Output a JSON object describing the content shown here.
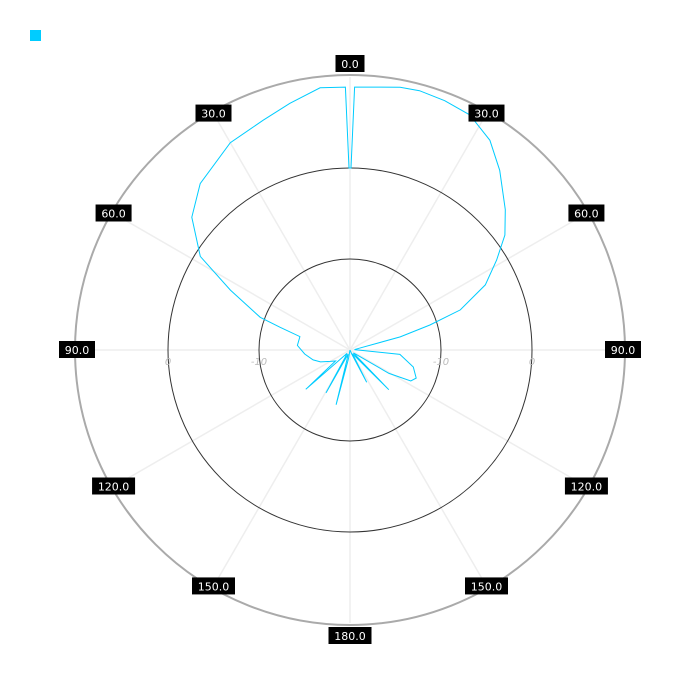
{
  "chart_data": {
    "type": "polar-line",
    "title": "",
    "angle_unit": "degrees",
    "angle_zero": "top",
    "direction": "clockwise",
    "angle_tick_labels": [
      "0.0",
      "30.0",
      "60.0",
      "90.0",
      "120.0",
      "150.0",
      "180.0",
      "150.0",
      "120.0",
      "90.0",
      "60.0",
      "30.0"
    ],
    "angle_ticks": [
      0,
      30,
      60,
      90,
      120,
      150,
      180,
      -150,
      -120,
      -90,
      -60,
      -30
    ],
    "radial_range": [
      -20,
      10
    ],
    "radial_rings": [
      -10,
      0,
      10
    ],
    "radial_tick_labels": [
      "-10",
      "0"
    ],
    "grid": true,
    "legend": {
      "placement": "top-left",
      "entries": [
        {
          "color": "#00ccff"
        }
      ]
    },
    "series": [
      {
        "color": "#00ccff",
        "points": [
          [
            -180,
            -20
          ],
          [
            -170,
            -19
          ],
          [
            -165.7,
            -13.8
          ],
          [
            -162,
            -19
          ],
          [
            -155,
            -19.5
          ],
          [
            -150.8,
            -14.6
          ],
          [
            -147,
            -19
          ],
          [
            -138,
            -19.5
          ],
          [
            -131.6,
            -13.5
          ],
          [
            -127,
            -18
          ],
          [
            -120,
            -17.5
          ],
          [
            -112,
            -16.5
          ],
          [
            -105,
            -15.8
          ],
          [
            -95,
            -15
          ],
          [
            -85,
            -14.2
          ],
          [
            -75,
            -14.3
          ],
          [
            -72,
            -11.9
          ],
          [
            -70,
            -9.5
          ],
          [
            -63.4,
            -5.3
          ],
          [
            -58,
            -0.6
          ],
          [
            -50,
            2.7
          ],
          [
            -42,
            4.6
          ],
          [
            -30,
            6.3
          ],
          [
            -20.7,
            7.0
          ],
          [
            -13.7,
            7.9
          ],
          [
            -6.5,
            9.0
          ],
          [
            -1,
            8.9
          ],
          [
            -0.3,
            0
          ],
          [
            0.3,
            0
          ],
          [
            1,
            8.9
          ],
          [
            10.8,
            9.4
          ],
          [
            15,
            9.5
          ],
          [
            20.8,
            9.3
          ],
          [
            27,
            9.0
          ],
          [
            33.7,
            7.7
          ],
          [
            39.8,
            5.7
          ],
          [
            47.9,
            3.0
          ],
          [
            53.4,
            1.2
          ],
          [
            58.5,
            -1.1
          ],
          [
            64.3,
            -3.5
          ],
          [
            70,
            -7.1
          ],
          [
            72.6,
            -10.8
          ],
          [
            75.4,
            -14.3
          ],
          [
            79,
            -19
          ],
          [
            85,
            -19.5
          ],
          [
            95,
            -14.5
          ],
          [
            105,
            -12.8
          ],
          [
            113,
            -12.1
          ],
          [
            117,
            -12.5
          ],
          [
            121,
            -15
          ],
          [
            125,
            -19
          ],
          [
            131,
            -19.5
          ],
          [
            135.7,
            -13.9
          ],
          [
            140,
            -19
          ],
          [
            147,
            -19.5
          ],
          [
            152.7,
            -16
          ],
          [
            157,
            -19.5
          ],
          [
            170,
            -20
          ],
          [
            180,
            -20
          ]
        ]
      }
    ]
  },
  "colors": {
    "outer_ring": "#aaaaaa",
    "inner_rings": "#333333",
    "spokes": "#eeeeee",
    "label_bg": "#000000"
  }
}
